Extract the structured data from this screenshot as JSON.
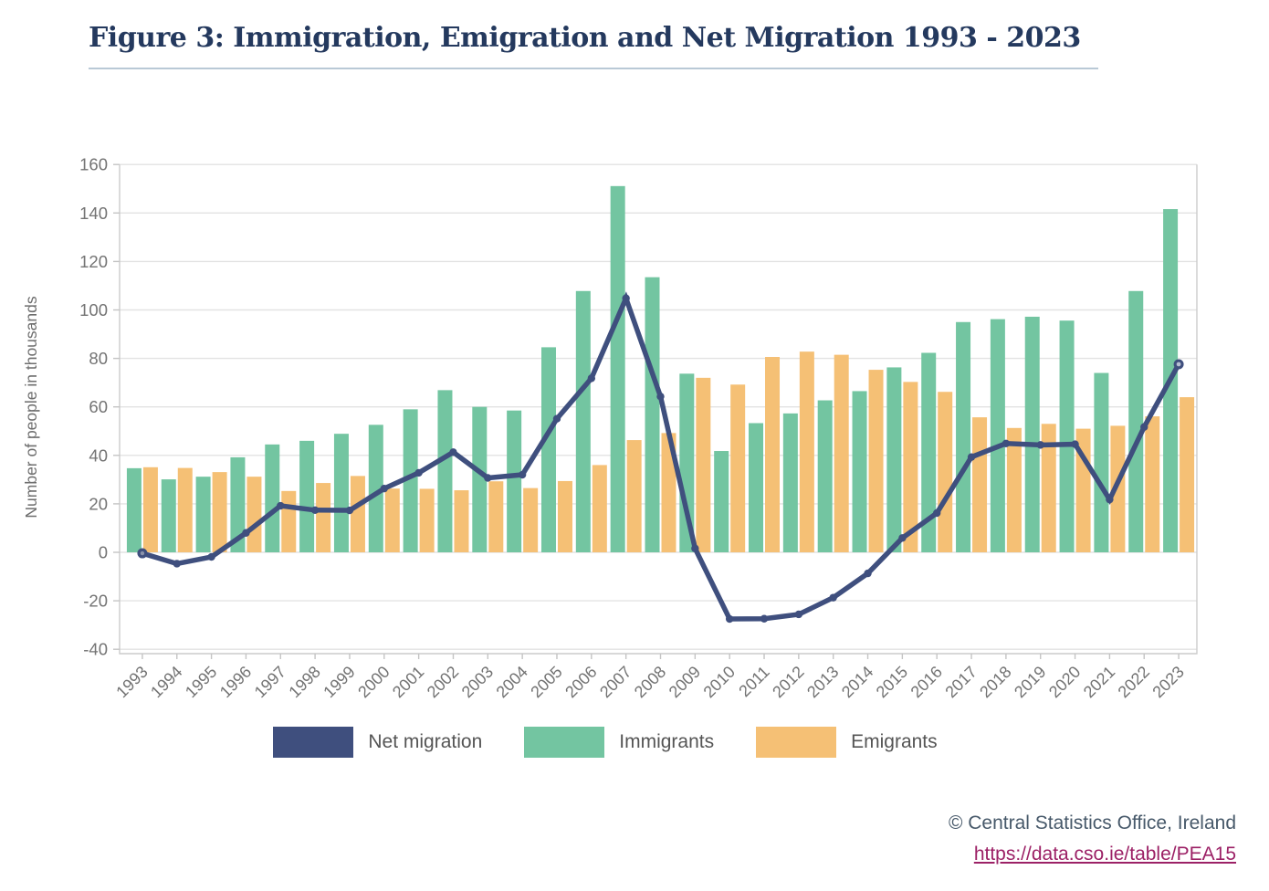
{
  "title": "Figure 3: Immigration, Emigration and Net Migration 1993 - 2023",
  "footer": {
    "copyright": "© Central Statistics Office, Ireland",
    "link": "https://data.cso.ie/table/PEA15"
  },
  "colors": {
    "title": "#24395e",
    "title_rule": "#b9c9d6",
    "net_line": "#3f4f7e",
    "net_marker_end_inner": "#b7bfd2",
    "net_marker_start_inner": "#8b93ab",
    "immigrants_green": "#73c5a1",
    "emigrants_orange": "#f5c075",
    "gridline": "#e3e3e3",
    "frame": "#cccccc",
    "tick": "#c4c4c4",
    "tick_text": "#737373",
    "axis_title_text": "#6e6e6e",
    "legend_text": "#555555",
    "footer_text": "#47596a",
    "link": "#9c2166"
  },
  "chart_data": {
    "type": "bar",
    "subtype": "grouped bars with line overlay",
    "title": "Figure 3: Immigration, Emigration and Net Migration 1993 - 2023",
    "xlabel": "",
    "ylabel": "Number of people in thousands",
    "ylim": [
      -40,
      160
    ],
    "ytick_step": 20,
    "yticks": [
      160,
      140,
      120,
      100,
      80,
      60,
      40,
      20,
      0,
      -20,
      -40
    ],
    "grid": true,
    "legend_position": "bottom",
    "categories": [
      1993,
      1994,
      1995,
      1996,
      1997,
      1998,
      1999,
      2000,
      2001,
      2002,
      2003,
      2004,
      2005,
      2006,
      2007,
      2008,
      2009,
      2010,
      2011,
      2012,
      2013,
      2014,
      2015,
      2016,
      2017,
      2018,
      2019,
      2020,
      2021,
      2022,
      2023
    ],
    "series": [
      {
        "name": "Net migration",
        "type": "line",
        "color": "#3f4f7e",
        "values": [
          -0.4,
          -4.7,
          -1.9,
          8.0,
          19.2,
          17.4,
          17.3,
          26.3,
          32.8,
          41.3,
          30.7,
          32.0,
          55.1,
          71.8,
          104.8,
          64.3,
          1.6,
          -27.5,
          -27.4,
          -25.6,
          -18.7,
          -8.7,
          5.9,
          16.2,
          39.3,
          44.9,
          44.3,
          44.6,
          21.8,
          51.7,
          77.6
        ]
      },
      {
        "name": "Immigrants",
        "type": "bar",
        "color": "#73c5a1",
        "values": [
          34.7,
          30.1,
          31.2,
          39.2,
          44.5,
          46.0,
          48.9,
          52.6,
          59.0,
          66.9,
          60.0,
          58.5,
          84.6,
          107.8,
          151.1,
          113.5,
          73.7,
          41.8,
          53.3,
          57.3,
          62.7,
          66.5,
          76.3,
          82.3,
          95.0,
          96.2,
          97.2,
          95.6,
          74.0,
          107.8,
          141.6
        ]
      },
      {
        "name": "Emigrants",
        "type": "bar",
        "color": "#f5c075",
        "values": [
          35.1,
          34.8,
          33.1,
          31.2,
          25.3,
          28.6,
          31.5,
          26.3,
          26.2,
          25.6,
          29.3,
          26.5,
          29.4,
          36.0,
          46.3,
          49.2,
          72.0,
          69.2,
          80.6,
          82.8,
          81.5,
          75.3,
          70.3,
          66.2,
          55.7,
          51.3,
          53.0,
          51.0,
          52.2,
          56.1,
          64.0
        ]
      }
    ]
  }
}
